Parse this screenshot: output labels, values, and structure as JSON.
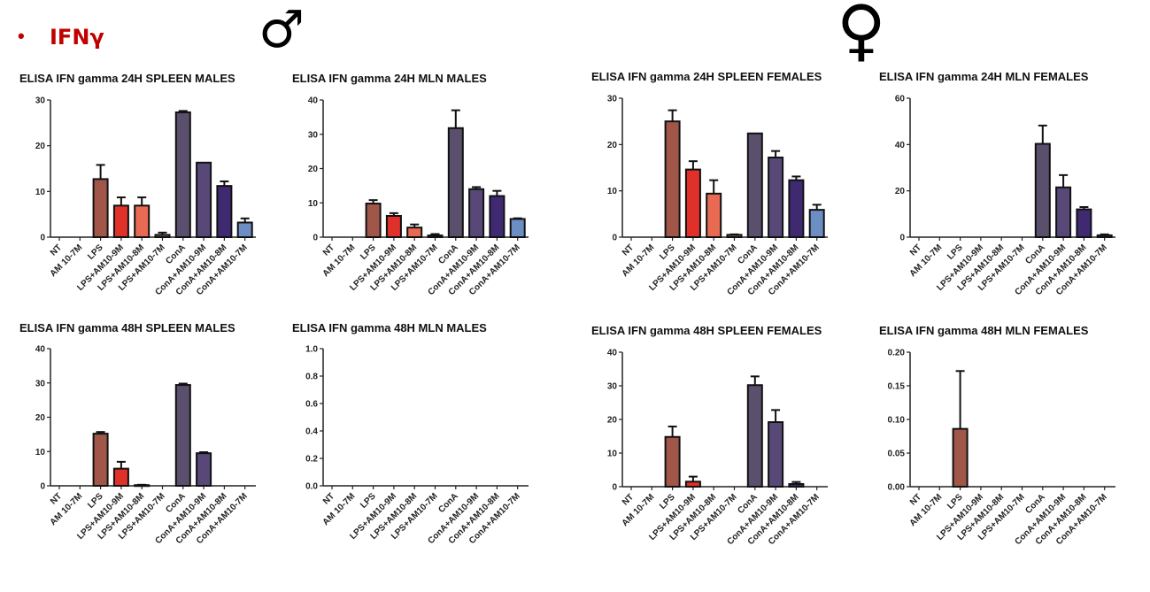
{
  "header": {
    "bullet": "•",
    "title": "IFNγ",
    "male_symbol": "♂",
    "female_symbol": "♀"
  },
  "colors": {
    "NT": "#888888",
    "AM 10-7M": "#888888",
    "LPS": "#a0574a",
    "LPS+AM10-9M": "#e0302a",
    "LPS+AM10-8M": "#e86a52",
    "LPS+AM10-7M": "#a26a58",
    "ConA": "#5a4f6c",
    "ConA+AM10-9M": "#574878",
    "ConA+AM10-8M": "#3f2a72",
    "ConA+AM10-7M": "#6d8ec2"
  },
  "chart_data": [
    {
      "type": "bar",
      "title": "ELISA IFN gamma 24H SPLEEN MALES",
      "ylim": [
        0,
        30
      ],
      "yticks": [
        "0",
        "10",
        "20",
        "30"
      ],
      "categories": [
        "NT",
        "AM 10-7M",
        "LPS",
        "LPS+AM10-9M",
        "LPS+AM10-8M",
        "LPS+AM10-7M",
        "ConA",
        "ConA+AM10-9M",
        "ConA+AM10-8M",
        "ConA+AM10-7M"
      ],
      "values": [
        0,
        0,
        12.7,
        6.9,
        6.9,
        0.5,
        27.3,
        16.3,
        11.2,
        3.2
      ],
      "errors": [
        0,
        0,
        3.1,
        1.8,
        1.8,
        0.5,
        0.3,
        0,
        1.0,
        0.9
      ]
    },
    {
      "type": "bar",
      "title": "ELISA IFN gamma 24H MLN MALES",
      "ylim": [
        0,
        40
      ],
      "yticks": [
        "0",
        "10",
        "20",
        "30",
        "40"
      ],
      "categories": [
        "NT",
        "AM 10-7M",
        "LPS",
        "LPS+AM10-9M",
        "LPS+AM10-8M",
        "LPS+AM10-7M",
        "ConA",
        "ConA+AM10-9M",
        "ConA+AM10-8M",
        "ConA+AM10-7M"
      ],
      "values": [
        0,
        0,
        9.8,
        6.2,
        2.8,
        0.5,
        31.8,
        14.0,
        12.0,
        5.3
      ],
      "errors": [
        0,
        0,
        1.0,
        0.8,
        0.9,
        0.4,
        5.2,
        0.6,
        1.5,
        0.2
      ]
    },
    {
      "type": "bar",
      "title": "ELISA IFN gamma 24H SPLEEN FEMALES",
      "ylim": [
        0,
        30
      ],
      "yticks": [
        "0",
        "10",
        "20",
        "30"
      ],
      "categories": [
        "NT",
        "AM 10-7M",
        "LPS",
        "LPS+AM10-9M",
        "LPS+AM10-8M",
        "LPS+AM10-7M",
        "ConA",
        "ConA+AM10-9M",
        "ConA+AM10-8M",
        "ConA+AM10-7M"
      ],
      "values": [
        0,
        0,
        25.0,
        14.6,
        9.4,
        0.5,
        22.4,
        17.2,
        12.3,
        5.9
      ],
      "errors": [
        0,
        0,
        2.4,
        1.8,
        2.9,
        0.1,
        0,
        1.4,
        0.8,
        1.1
      ]
    },
    {
      "type": "bar",
      "title": "ELISA IFN gamma 24H MLN FEMALES",
      "ylim": [
        0,
        60
      ],
      "yticks": [
        "0",
        "20",
        "40",
        "60"
      ],
      "categories": [
        "NT",
        "AM 10-7M",
        "LPS",
        "LPS+AM10-9M",
        "LPS+AM10-8M",
        "LPS+AM10-7M",
        "ConA",
        "ConA+AM10-9M",
        "ConA+AM10-8M",
        "ConA+AM10-7M"
      ],
      "values": [
        0,
        0,
        0,
        0,
        0,
        0,
        40.3,
        21.5,
        12.0,
        0.8
      ],
      "errors": [
        0,
        0,
        0,
        0,
        0,
        0,
        7.9,
        5.3,
        1.0,
        0.4
      ]
    },
    {
      "type": "bar",
      "title": "ELISA IFN gamma 48H SPLEEN MALES",
      "ylim": [
        0,
        40
      ],
      "yticks": [
        "0",
        "10",
        "20",
        "30",
        "40"
      ],
      "categories": [
        "NT",
        "AM 10-7M",
        "LPS",
        "LPS+AM10-9M",
        "LPS+AM10-8M",
        "LPS+AM10-7M",
        "ConA",
        "ConA+AM10-9M",
        "ConA+AM10-8M",
        "ConA+AM10-7M"
      ],
      "values": [
        0,
        0,
        15.2,
        5.0,
        0.2,
        0,
        29.4,
        9.5,
        0,
        0
      ],
      "errors": [
        0,
        0,
        0.5,
        2.0,
        0.1,
        0,
        0.4,
        0.3,
        0,
        0
      ]
    },
    {
      "type": "bar",
      "title": "ELISA IFN gamma 48H MLN MALES",
      "ylim": [
        0,
        1.0
      ],
      "yticks": [
        "0.0",
        "0.2",
        "0.4",
        "0.6",
        "0.8",
        "1.0"
      ],
      "categories": [
        "NT",
        "AM 10-7M",
        "LPS",
        "LPS+AM10-9M",
        "LPS+AM10-8M",
        "LPS+AM10-7M",
        "ConA",
        "ConA+AM10-9M",
        "ConA+AM10-8M",
        "ConA+AM10-7M"
      ],
      "values": [
        0,
        0,
        0,
        0,
        0,
        0,
        0,
        0,
        0,
        0
      ],
      "errors": [
        0,
        0,
        0,
        0,
        0,
        0,
        0,
        0,
        0,
        0
      ]
    },
    {
      "type": "bar",
      "title": "ELISA IFN gamma 48H SPLEEN FEMALES",
      "ylim": [
        0,
        40
      ],
      "yticks": [
        "0",
        "10",
        "20",
        "30",
        "40"
      ],
      "categories": [
        "NT",
        "AM 10-7M",
        "LPS",
        "LPS+AM10-9M",
        "LPS+AM10-8M",
        "LPS+AM10-7M",
        "ConA",
        "ConA+AM10-9M",
        "ConA+AM10-8M",
        "ConA+AM10-7M"
      ],
      "values": [
        0,
        0,
        14.8,
        1.5,
        0,
        0,
        30.2,
        19.2,
        0.8,
        0
      ],
      "errors": [
        0,
        0,
        3.1,
        1.5,
        0,
        0,
        2.6,
        3.6,
        0.6,
        0
      ]
    },
    {
      "type": "bar",
      "title": "ELISA IFN gamma 48H MLN FEMALES",
      "ylim": [
        0,
        0.2
      ],
      "yticks": [
        "0.00",
        "0.05",
        "0.10",
        "0.15",
        "0.20"
      ],
      "categories": [
        "NT",
        "AM 10-7M",
        "LPS",
        "LPS+AM10-9M",
        "LPS+AM10-8M",
        "LPS+AM10-7M",
        "ConA",
        "ConA+AM10-9M",
        "ConA+AM10-8M",
        "ConA+AM10-7M"
      ],
      "values": [
        0,
        0,
        0.086,
        0,
        0,
        0,
        0,
        0,
        0,
        0
      ],
      "errors": [
        0,
        0,
        0.086,
        0,
        0,
        0,
        0,
        0,
        0,
        0
      ]
    }
  ]
}
